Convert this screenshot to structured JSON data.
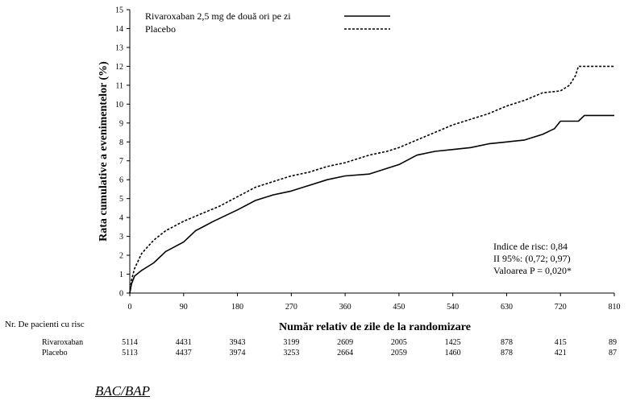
{
  "chart_data": {
    "type": "line",
    "title": "",
    "xlabel": "Număr relativ de zile de la randomizare",
    "ylabel": "Rata cumulative a evenimentelor (%)",
    "xlim": [
      0,
      810
    ],
    "ylim": [
      0,
      15
    ],
    "xticks": [
      0,
      90,
      180,
      270,
      360,
      450,
      540,
      630,
      720,
      810
    ],
    "yticks": [
      0,
      1,
      2,
      3,
      4,
      5,
      6,
      7,
      8,
      9,
      10,
      11,
      12,
      13,
      14,
      15
    ],
    "legend_position": "top-right",
    "series": [
      {
        "name": "Rivaroxaban 2,5 mg de două ori pe zi",
        "line_style": "solid",
        "color": "#000000",
        "points": [
          [
            0,
            0
          ],
          [
            3,
            0.5
          ],
          [
            8,
            0.9
          ],
          [
            20,
            1.2
          ],
          [
            40,
            1.6
          ],
          [
            60,
            2.2
          ],
          [
            90,
            2.7
          ],
          [
            110,
            3.3
          ],
          [
            140,
            3.8
          ],
          [
            180,
            4.4
          ],
          [
            210,
            4.9
          ],
          [
            240,
            5.2
          ],
          [
            270,
            5.4
          ],
          [
            300,
            5.7
          ],
          [
            330,
            6.0
          ],
          [
            360,
            6.2
          ],
          [
            400,
            6.3
          ],
          [
            430,
            6.6
          ],
          [
            450,
            6.8
          ],
          [
            480,
            7.3
          ],
          [
            510,
            7.5
          ],
          [
            540,
            7.6
          ],
          [
            570,
            7.7
          ],
          [
            600,
            7.9
          ],
          [
            630,
            8.0
          ],
          [
            660,
            8.1
          ],
          [
            690,
            8.4
          ],
          [
            710,
            8.7
          ],
          [
            720,
            9.1
          ],
          [
            750,
            9.1
          ],
          [
            760,
            9.4
          ],
          [
            810,
            9.4
          ]
        ]
      },
      {
        "name": "Placebo",
        "line_style": "dashed",
        "color": "#000000",
        "points": [
          [
            0,
            0
          ],
          [
            3,
            0.7
          ],
          [
            8,
            1.3
          ],
          [
            20,
            2.1
          ],
          [
            40,
            2.8
          ],
          [
            60,
            3.3
          ],
          [
            90,
            3.8
          ],
          [
            120,
            4.2
          ],
          [
            150,
            4.6
          ],
          [
            180,
            5.1
          ],
          [
            210,
            5.6
          ],
          [
            240,
            5.9
          ],
          [
            270,
            6.2
          ],
          [
            300,
            6.4
          ],
          [
            330,
            6.7
          ],
          [
            360,
            6.9
          ],
          [
            400,
            7.3
          ],
          [
            430,
            7.5
          ],
          [
            450,
            7.7
          ],
          [
            480,
            8.1
          ],
          [
            510,
            8.5
          ],
          [
            540,
            8.9
          ],
          [
            570,
            9.2
          ],
          [
            600,
            9.5
          ],
          [
            630,
            9.9
          ],
          [
            660,
            10.2
          ],
          [
            690,
            10.6
          ],
          [
            720,
            10.7
          ],
          [
            735,
            11.0
          ],
          [
            745,
            11.5
          ],
          [
            750,
            12.0
          ],
          [
            810,
            12.0
          ]
        ]
      }
    ],
    "annotations": [
      "Indice de risc: 0,84",
      "II 95%: (0,72; 0,97)",
      "Valoarea P = 0,020*"
    ],
    "risk_table": {
      "header": "Nr. De pacienti cu risc",
      "rows": [
        {
          "label": "Rivaroxaban",
          "values": [
            "5114",
            "4431",
            "3943",
            "3199",
            "2609",
            "2005",
            "1425",
            "878",
            "415",
            "89"
          ]
        },
        {
          "label": "Placebo",
          "values": [
            "5113",
            "4437",
            "3974",
            "3253",
            "2664",
            "2059",
            "1460",
            "878",
            "421",
            "87"
          ]
        }
      ]
    }
  },
  "below_chart": {
    "heading": "BAC/BAP"
  }
}
